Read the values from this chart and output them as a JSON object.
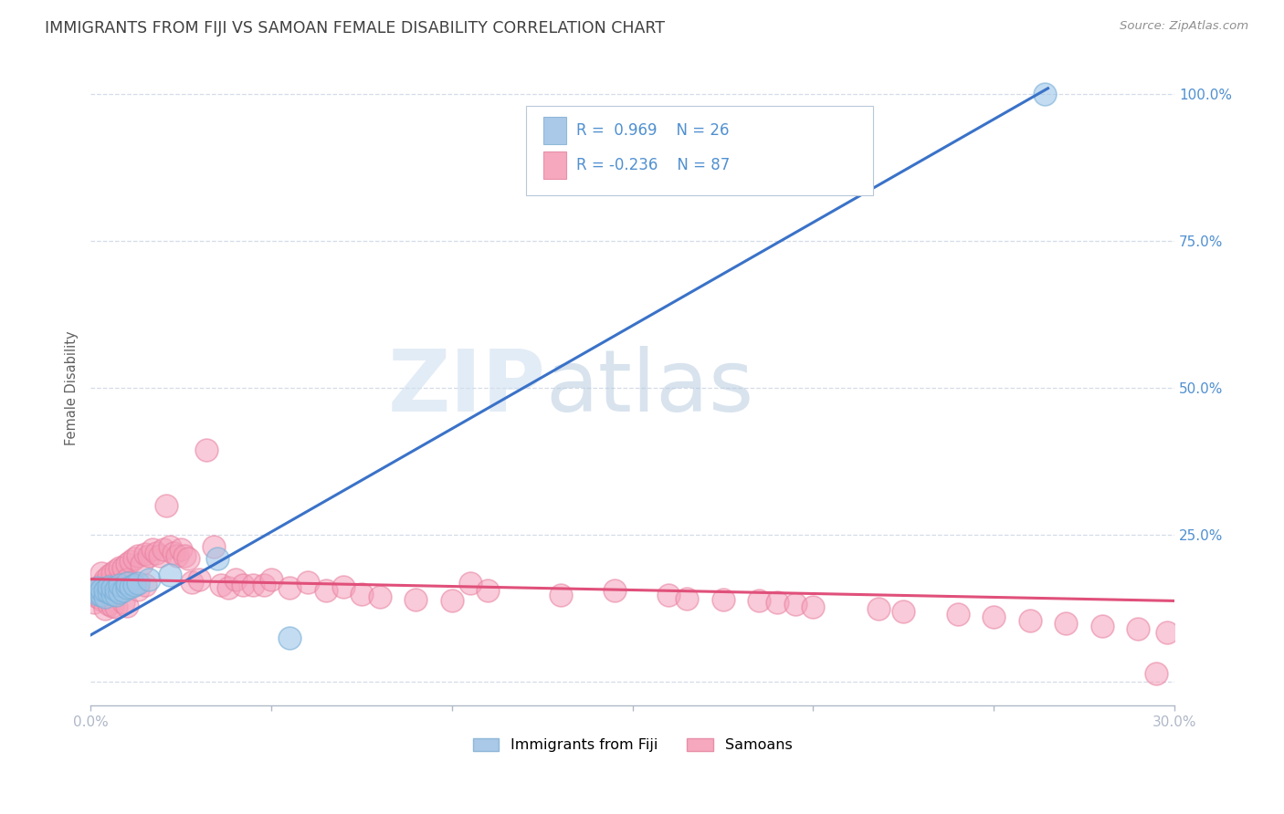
{
  "title": "IMMIGRANTS FROM FIJI VS SAMOAN FEMALE DISABILITY CORRELATION CHART",
  "source": "Source: ZipAtlas.com",
  "ylabel": "Female Disability",
  "xlim": [
    0.0,
    0.3
  ],
  "ylim": [
    -0.04,
    1.04
  ],
  "yticks": [
    0.0,
    0.25,
    0.5,
    0.75,
    1.0
  ],
  "yticklabels": [
    "",
    "25.0%",
    "50.0%",
    "75.0%",
    "100.0%"
  ],
  "r_fiji": 0.969,
  "n_fiji": 26,
  "r_samoan": -0.236,
  "n_samoan": 87,
  "fiji_color": "#9ec6e8",
  "fiji_edge_color": "#7ab0d8",
  "samoan_color": "#f5a0ba",
  "samoan_edge_color": "#e880a0",
  "fiji_line_color": "#3a72c8",
  "samoan_line_color": "#e0507a",
  "fiji_line_x0": 0.0,
  "fiji_line_y0": 0.08,
  "fiji_line_x1": 0.265,
  "fiji_line_y1": 1.01,
  "samoan_line_x0": 0.0,
  "samoan_line_y0": 0.175,
  "samoan_line_x1": 0.3,
  "samoan_line_y1": 0.138,
  "fiji_scatter_x": [
    0.001,
    0.002,
    0.002,
    0.003,
    0.003,
    0.004,
    0.004,
    0.005,
    0.005,
    0.006,
    0.006,
    0.007,
    0.007,
    0.008,
    0.008,
    0.009,
    0.01,
    0.01,
    0.011,
    0.012,
    0.013,
    0.016,
    0.022,
    0.035,
    0.055,
    0.264
  ],
  "fiji_scatter_y": [
    0.155,
    0.15,
    0.16,
    0.148,
    0.158,
    0.145,
    0.155,
    0.152,
    0.162,
    0.15,
    0.16,
    0.148,
    0.158,
    0.152,
    0.165,
    0.155,
    0.16,
    0.168,
    0.162,
    0.165,
    0.168,
    0.175,
    0.182,
    0.21,
    0.075,
    1.0
  ],
  "samoan_scatter_x": [
    0.001,
    0.001,
    0.002,
    0.002,
    0.003,
    0.003,
    0.003,
    0.004,
    0.004,
    0.004,
    0.005,
    0.005,
    0.005,
    0.006,
    0.006,
    0.006,
    0.007,
    0.007,
    0.007,
    0.008,
    0.008,
    0.009,
    0.009,
    0.01,
    0.01,
    0.01,
    0.011,
    0.011,
    0.012,
    0.012,
    0.013,
    0.013,
    0.014,
    0.015,
    0.015,
    0.016,
    0.017,
    0.018,
    0.019,
    0.02,
    0.021,
    0.022,
    0.023,
    0.024,
    0.025,
    0.026,
    0.027,
    0.028,
    0.03,
    0.032,
    0.034,
    0.036,
    0.038,
    0.04,
    0.042,
    0.045,
    0.048,
    0.05,
    0.055,
    0.06,
    0.065,
    0.07,
    0.075,
    0.08,
    0.09,
    0.1,
    0.105,
    0.11,
    0.13,
    0.145,
    0.16,
    0.165,
    0.175,
    0.185,
    0.19,
    0.195,
    0.2,
    0.218,
    0.225,
    0.24,
    0.25,
    0.26,
    0.27,
    0.28,
    0.29,
    0.295,
    0.298
  ],
  "samoan_scatter_y": [
    0.155,
    0.135,
    0.16,
    0.145,
    0.185,
    0.165,
    0.14,
    0.175,
    0.15,
    0.125,
    0.18,
    0.16,
    0.132,
    0.185,
    0.165,
    0.13,
    0.19,
    0.16,
    0.128,
    0.195,
    0.16,
    0.195,
    0.135,
    0.2,
    0.175,
    0.13,
    0.205,
    0.17,
    0.21,
    0.165,
    0.215,
    0.158,
    0.2,
    0.218,
    0.165,
    0.215,
    0.225,
    0.22,
    0.215,
    0.225,
    0.3,
    0.23,
    0.22,
    0.215,
    0.225,
    0.215,
    0.21,
    0.17,
    0.175,
    0.395,
    0.23,
    0.165,
    0.16,
    0.175,
    0.165,
    0.165,
    0.165,
    0.175,
    0.16,
    0.17,
    0.155,
    0.162,
    0.15,
    0.145,
    0.14,
    0.138,
    0.168,
    0.155,
    0.148,
    0.155,
    0.148,
    0.142,
    0.14,
    0.138,
    0.135,
    0.132,
    0.128,
    0.125,
    0.12,
    0.115,
    0.11,
    0.105,
    0.1,
    0.095,
    0.09,
    0.015,
    0.085
  ],
  "background_color": "#ffffff",
  "grid_color": "#d4dce8",
  "title_color": "#404040",
  "axis_color": "#5090d0",
  "legend_fiji_color": "#aac8e8",
  "legend_samoan_color": "#f5a8be"
}
